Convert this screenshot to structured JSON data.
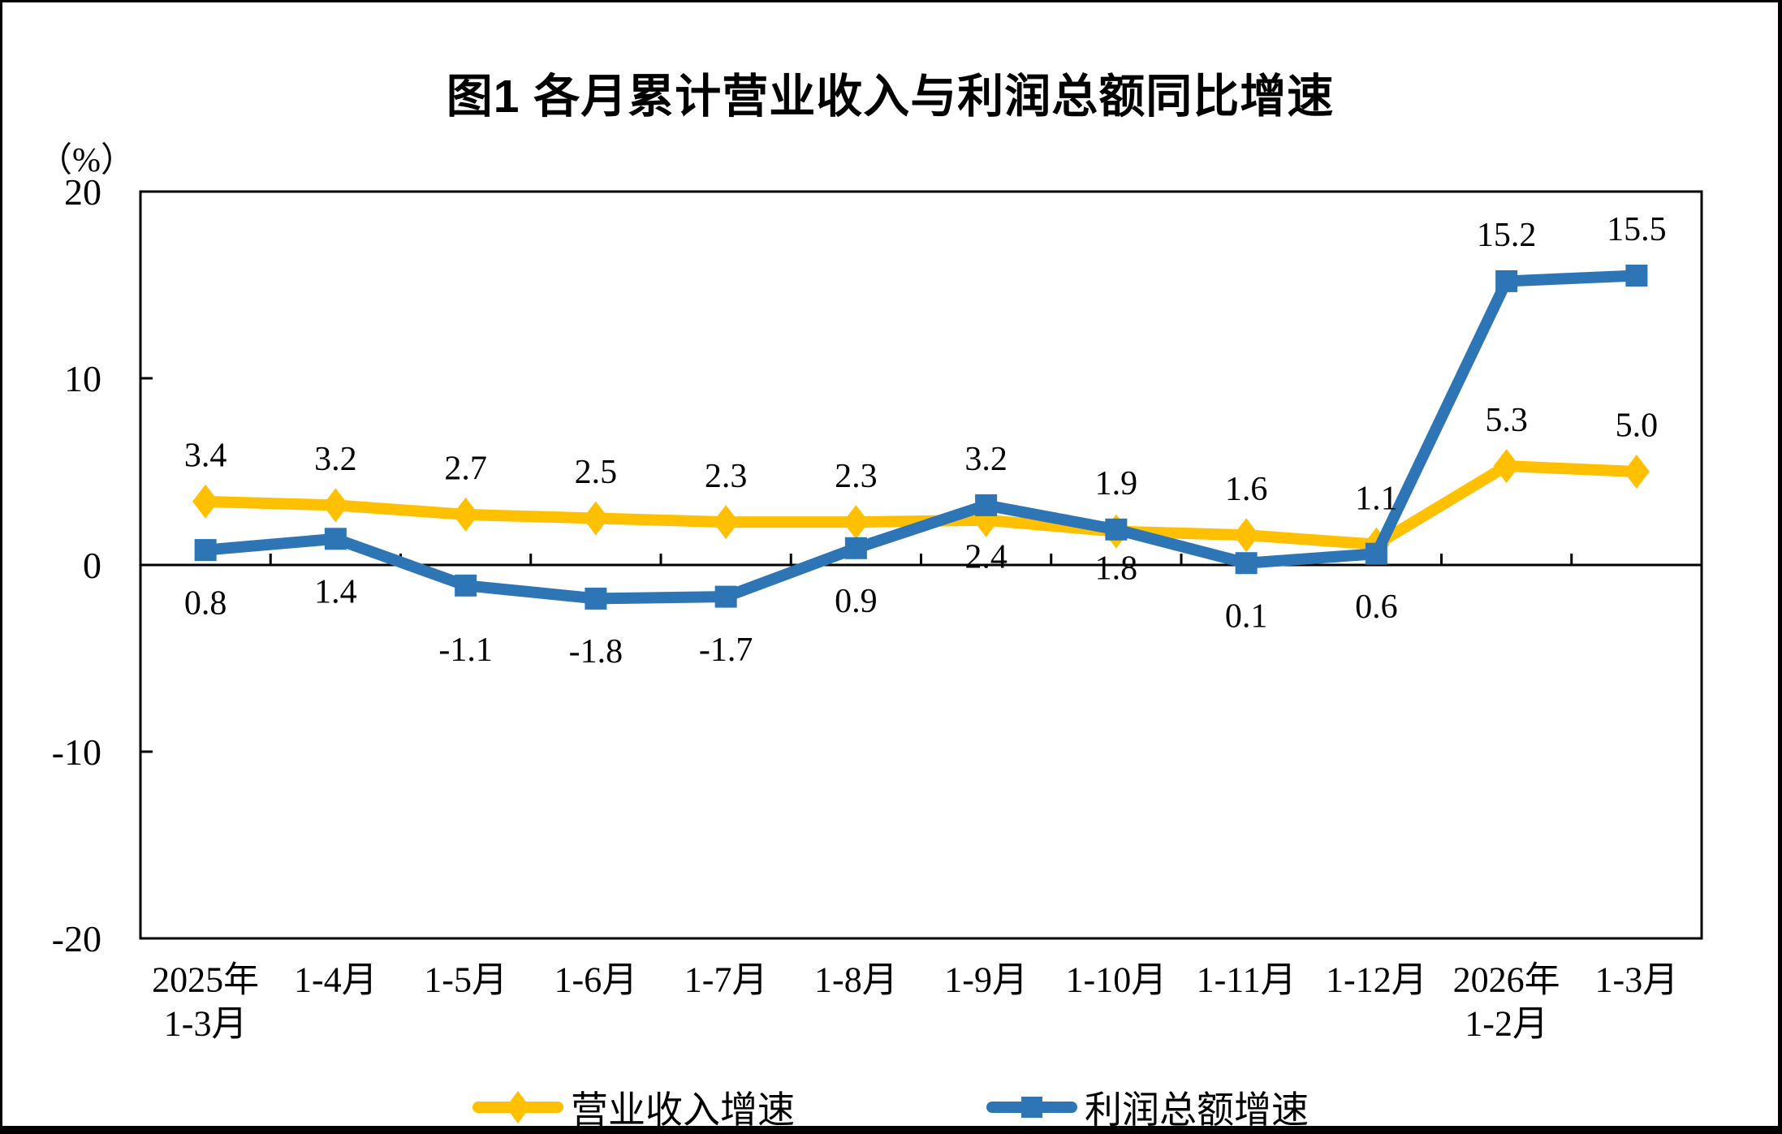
{
  "page": {
    "background": "#FFFFFF",
    "border_color": "#000000"
  },
  "chart_data": {
    "type": "line",
    "title": "图1 各月累计营业收入与利润总额同比增速",
    "unit": "（%）",
    "categories": [
      [
        "2025年",
        "1-3月"
      ],
      [
        "1-4月"
      ],
      [
        "1-5月"
      ],
      [
        "1-6月"
      ],
      [
        "1-7月"
      ],
      [
        "1-8月"
      ],
      [
        "1-9月"
      ],
      [
        "1-10月"
      ],
      [
        "1-11月"
      ],
      [
        "1-12月"
      ],
      [
        "2026年",
        "1-2月"
      ],
      [
        "1-3月"
      ]
    ],
    "y_axis": {
      "min": -20,
      "max": 20,
      "ticks": [
        20,
        10,
        0,
        -10,
        -20
      ],
      "tick_labels": [
        "20",
        "10",
        "0",
        "-10",
        "-20"
      ]
    },
    "grid": false,
    "legend_position": "bottom",
    "series": [
      {
        "key": "revenue",
        "name": "营业收入增速",
        "color": "#FFC000",
        "marker": "diamond",
        "values": [
          3.4,
          3.2,
          2.7,
          2.5,
          2.3,
          2.3,
          2.4,
          1.8,
          1.6,
          1.1,
          5.3,
          5.0
        ],
        "labels": [
          "3.4",
          "3.2",
          "2.7",
          "2.5",
          "2.3",
          "2.3",
          "2.4",
          "1.8",
          "1.6",
          "1.1",
          "5.3",
          "5.0"
        ],
        "label_positions": [
          "above",
          "above",
          "above",
          "above",
          "above",
          "above",
          "below-near",
          "below-near",
          "above",
          "above",
          "above",
          "above"
        ]
      },
      {
        "key": "profit",
        "name": "利润总额增速",
        "color": "#2E75B6",
        "marker": "square",
        "values": [
          0.8,
          1.4,
          -1.1,
          -1.8,
          -1.7,
          0.9,
          3.2,
          1.9,
          0.1,
          0.6,
          15.2,
          15.5
        ],
        "labels": [
          "0.8",
          "1.4",
          "-1.1",
          "-1.8",
          "-1.7",
          "0.9",
          "3.2",
          "1.9",
          "0.1",
          "0.6",
          "15.2",
          "15.5"
        ],
        "label_positions": [
          "below",
          "below",
          "below-far",
          "below",
          "below",
          "below",
          "above",
          "above",
          "below",
          "below",
          "above",
          "above"
        ]
      }
    ]
  }
}
